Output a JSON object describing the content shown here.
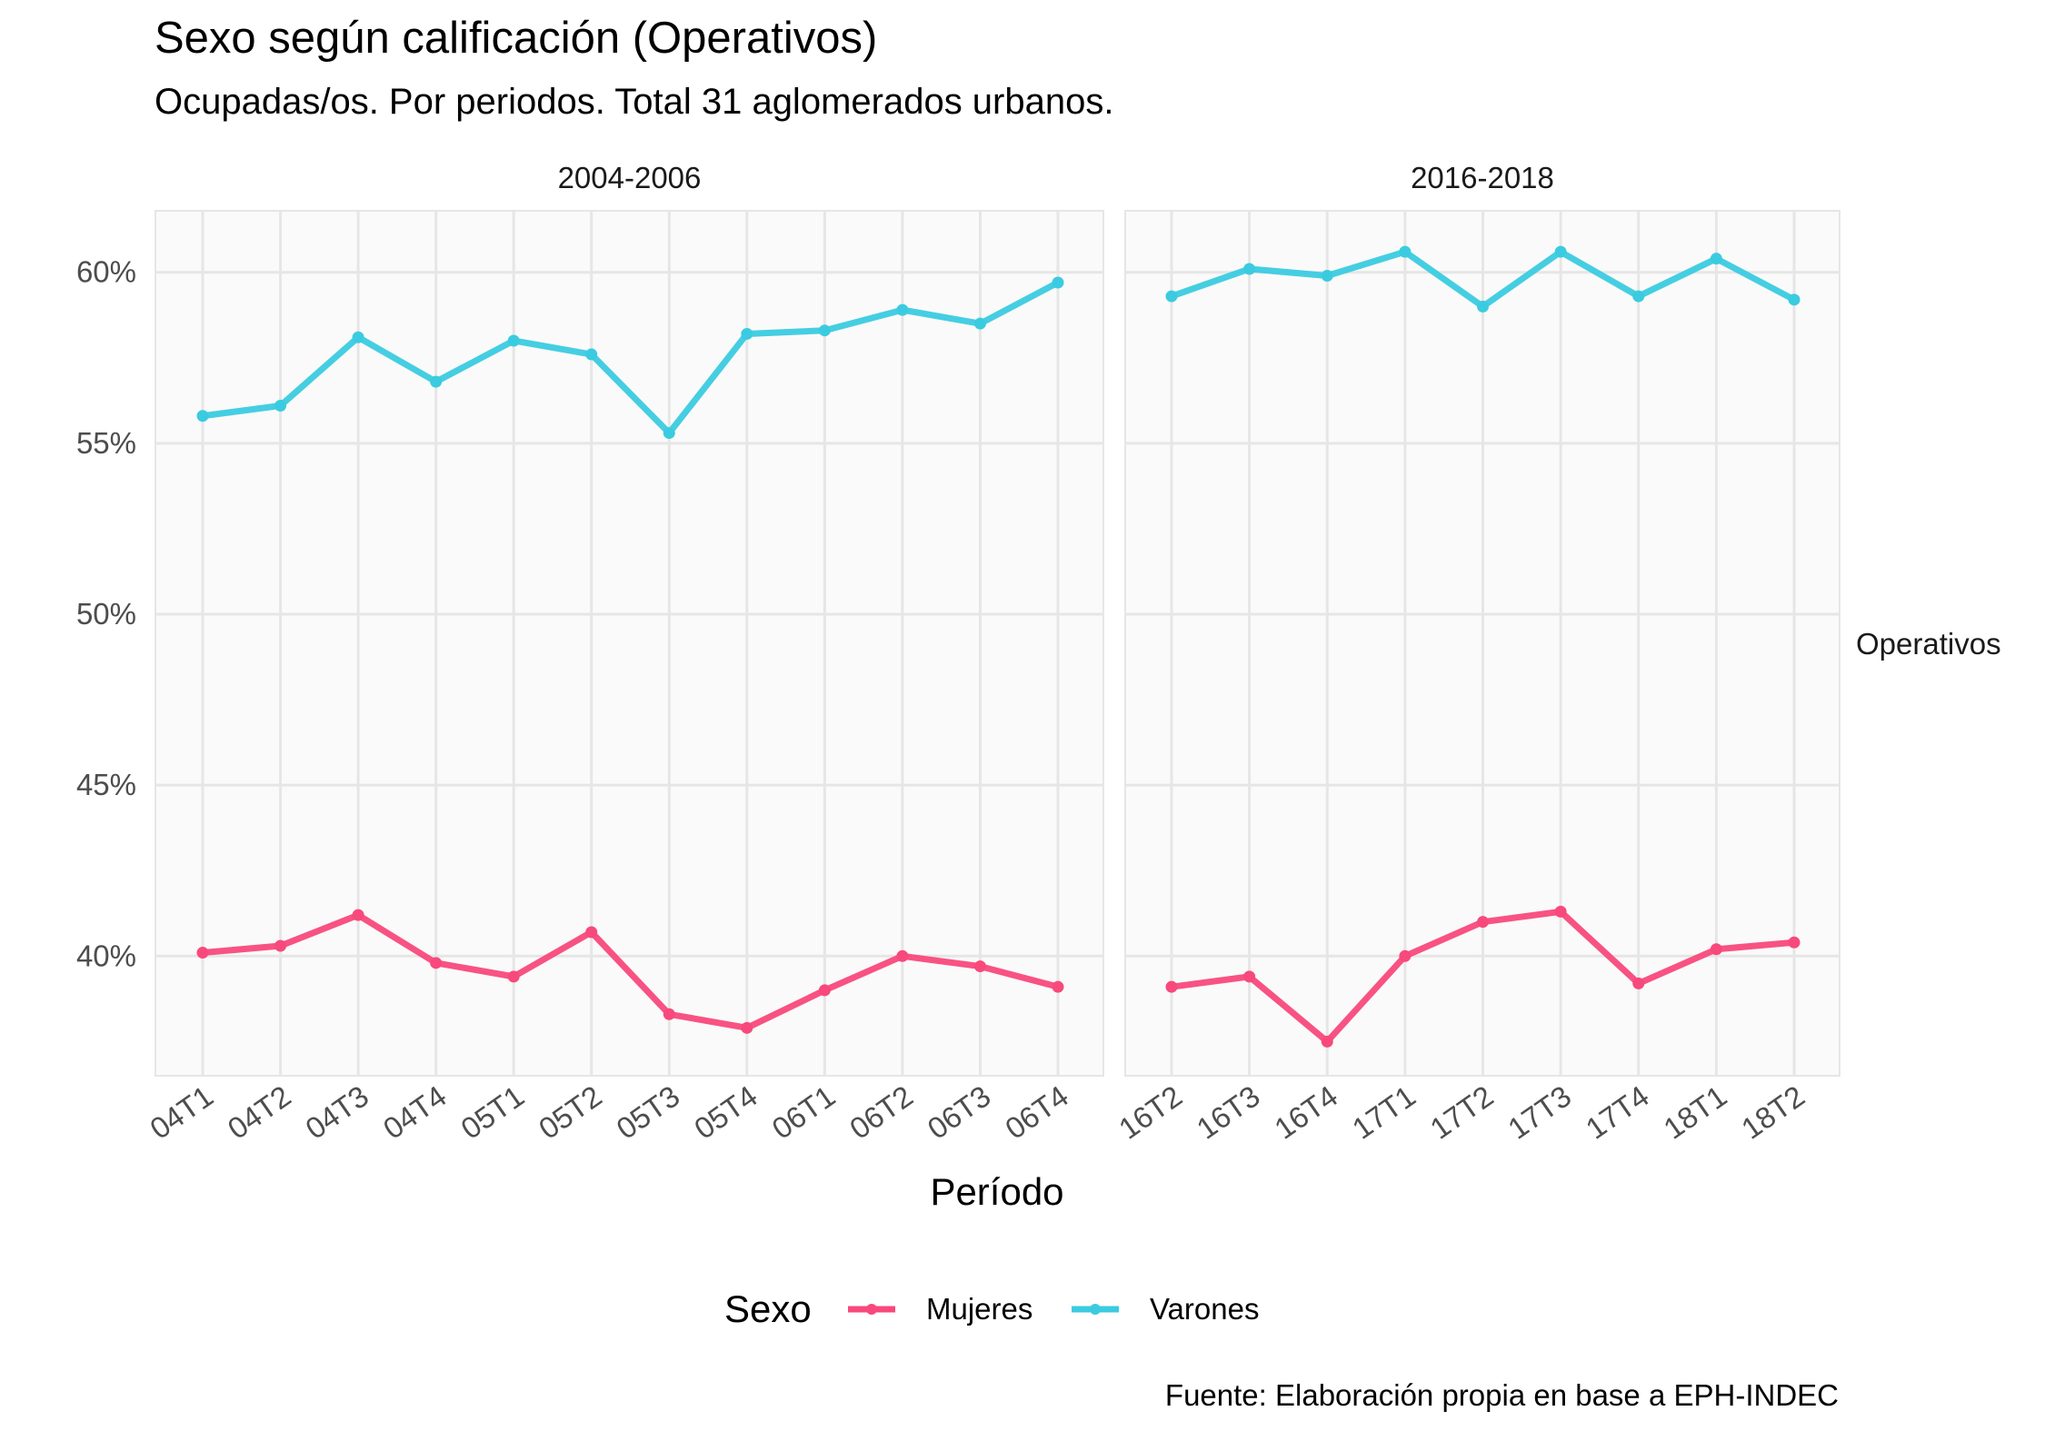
{
  "chart_data": {
    "type": "line",
    "title": "Sexo según calificación (Operativos)",
    "subtitle": "Ocupadas/os. Por periodos. Total 31 aglomerados urbanos.",
    "xlabel": "Período",
    "ylabel": "",
    "caption": "Fuente: Elaboración propia en base a EPH-INDEC",
    "row_strip": "Operativos",
    "legend": {
      "title": "Sexo",
      "position": "bottom"
    },
    "ylim": [
      0.365,
      0.618
    ],
    "yticks": [
      {
        "value": 0.4,
        "label": "40%"
      },
      {
        "value": 0.45,
        "label": "45%"
      },
      {
        "value": 0.5,
        "label": "50%"
      },
      {
        "value": 0.55,
        "label": "55%"
      },
      {
        "value": 0.6,
        "label": "60%"
      }
    ],
    "grid": true,
    "colors": {
      "Mujeres": "#F8497C",
      "Varones": "#3BCBE0",
      "panel_bg": "#FAFAFA",
      "grid": "#E6E6E6"
    },
    "panels": [
      {
        "strip": "2004-2006",
        "categories": [
          "04T1",
          "04T2",
          "04T3",
          "04T4",
          "05T1",
          "05T2",
          "05T3",
          "05T4",
          "06T1",
          "06T2",
          "06T3",
          "06T4"
        ],
        "series": [
          {
            "name": "Mujeres",
            "values": [
              0.401,
              0.403,
              0.412,
              0.398,
              0.394,
              0.407,
              0.383,
              0.379,
              0.39,
              0.4,
              0.397,
              0.391
            ]
          },
          {
            "name": "Varones",
            "values": [
              0.558,
              0.561,
              0.581,
              0.568,
              0.58,
              0.576,
              0.553,
              0.582,
              0.583,
              0.589,
              0.585,
              0.597
            ]
          }
        ]
      },
      {
        "strip": "2016-2018",
        "categories": [
          "16T2",
          "16T3",
          "16T4",
          "17T1",
          "17T2",
          "17T3",
          "17T4",
          "18T1",
          "18T2"
        ],
        "series": [
          {
            "name": "Mujeres",
            "values": [
              0.391,
              0.394,
              0.375,
              0.4,
              0.41,
              0.413,
              0.392,
              0.402,
              0.404
            ]
          },
          {
            "name": "Varones",
            "values": [
              0.593,
              0.601,
              0.599,
              0.606,
              0.59,
              0.606,
              0.593,
              0.604,
              0.592
            ]
          }
        ]
      }
    ]
  }
}
